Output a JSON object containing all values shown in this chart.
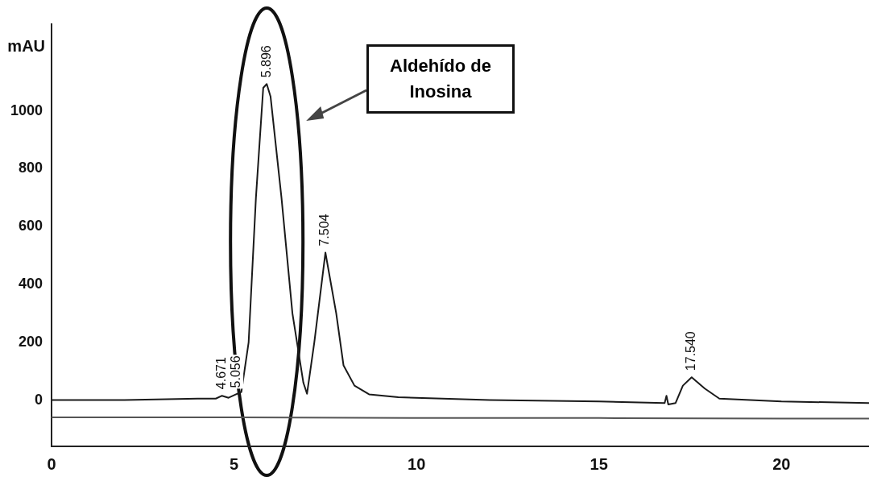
{
  "chart_data": {
    "type": "line",
    "ylabel": "mAU",
    "xlim": [
      0,
      22.4
    ],
    "ylim": [
      -160,
      1300
    ],
    "xticks": [
      0,
      5,
      10,
      15,
      20
    ],
    "yticks": [
      0,
      200,
      400,
      600,
      800,
      1000
    ],
    "marker": "none",
    "line_style": "solid",
    "series": [
      {
        "color": "#1a1a1a",
        "x": [
          0,
          2,
          4,
          4.5,
          4.671,
          4.85,
          5.056,
          5.2,
          5.4,
          5.6,
          5.8,
          5.896,
          6.0,
          6.3,
          6.6,
          6.9,
          7.0,
          7.2,
          7.504,
          7.8,
          8.0,
          8.3,
          8.7,
          9.5,
          12,
          15,
          16.8,
          16.85,
          16.9,
          17.1,
          17.3,
          17.54,
          17.9,
          18.3,
          20,
          22.4
        ],
        "values": [
          0,
          0,
          5,
          5,
          15,
          8,
          20,
          28,
          200,
          700,
          1080,
          1093,
          1050,
          700,
          300,
          60,
          22,
          200,
          510,
          300,
          120,
          50,
          20,
          10,
          0,
          -5,
          -10,
          15,
          -15,
          -10,
          50,
          79,
          40,
          5,
          -5,
          -10
        ]
      },
      {
        "color": "#555555",
        "x": [
          0,
          5,
          10,
          15,
          20,
          22.4
        ],
        "values": [
          -60,
          -60,
          -62,
          -62,
          -64,
          -64
        ]
      }
    ],
    "annotations": [
      {
        "text": "4.671",
        "x": 4.671,
        "y": 15
      },
      {
        "text": "5.056",
        "x": 5.056,
        "y": 20
      },
      {
        "text": "5.896",
        "x": 5.896,
        "y": 1093
      },
      {
        "text": "7.504",
        "x": 7.504,
        "y": 510
      },
      {
        "text": "17.540",
        "x": 17.54,
        "y": 79
      },
      "Aldehído de Inosina"
    ]
  }
}
